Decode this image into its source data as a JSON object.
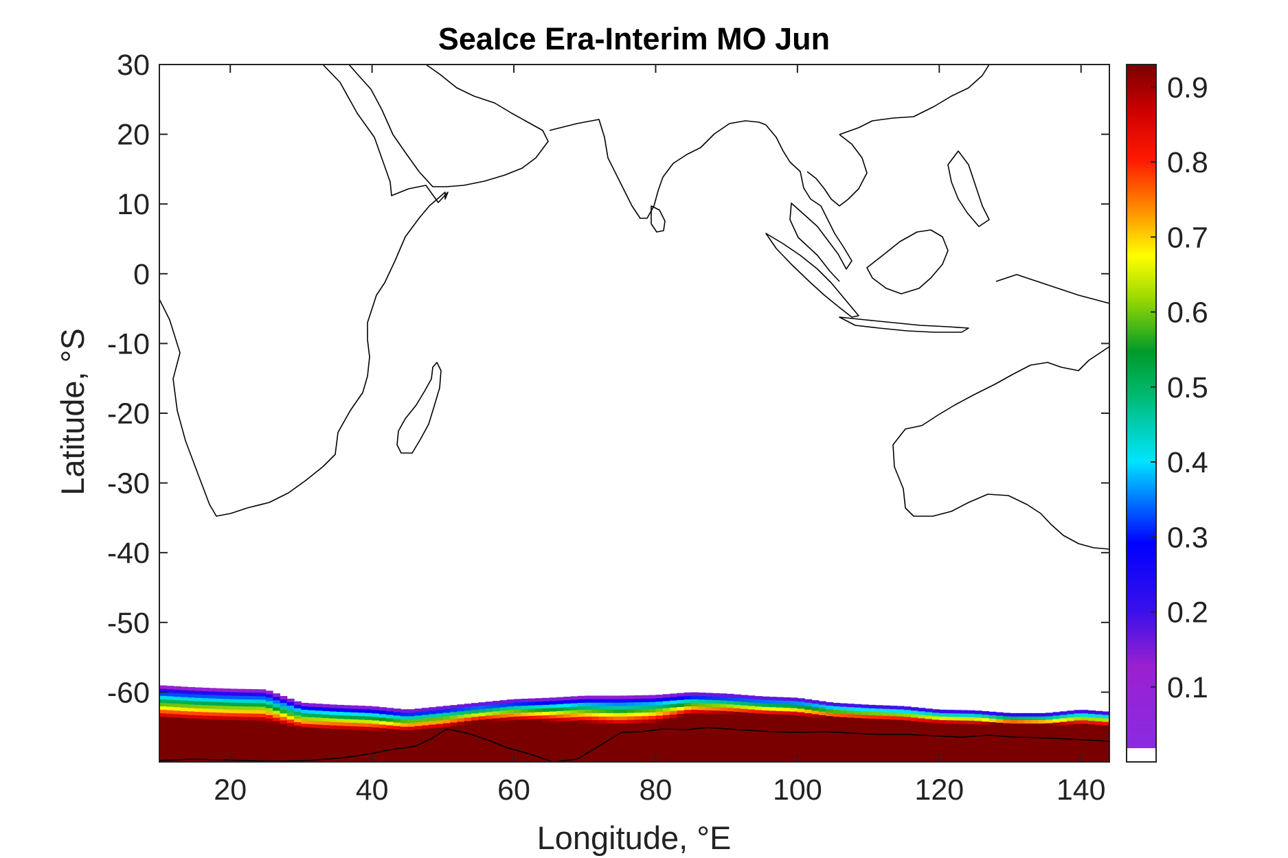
{
  "chart_data": {
    "type": "heatmap",
    "title": "SeaIce Era-Interim MO Jun",
    "xlabel": "Longitude, °E",
    "ylabel": "Latitude, °S",
    "xlim": [
      10,
      144
    ],
    "ylim": [
      -70,
      30
    ],
    "xticks": [
      20,
      40,
      60,
      80,
      100,
      120,
      140
    ],
    "yticks": [
      30,
      20,
      10,
      0,
      -10,
      -20,
      -30,
      -40,
      -50,
      -60
    ],
    "colorbar": {
      "range": [
        0,
        0.93
      ],
      "ticks": [
        0.1,
        0.2,
        0.3,
        0.4,
        0.5,
        0.6,
        0.7,
        0.8,
        0.9
      ],
      "colormap": "jet-like (violet-blue-cyan-green-yellow-red-darkred)"
    },
    "field": "sea ice concentration",
    "ice_edge_profile": {
      "lon": [
        10,
        15,
        20,
        25,
        30,
        35,
        40,
        45,
        50,
        55,
        60,
        65,
        70,
        75,
        80,
        85,
        90,
        95,
        100,
        105,
        110,
        115,
        120,
        125,
        130,
        135,
        140,
        144
      ],
      "outer_edge_lat": [
        -59,
        -59.3,
        -59.5,
        -59.6,
        -61.5,
        -61.8,
        -62,
        -62.5,
        -62,
        -61.5,
        -61,
        -60.8,
        -60.5,
        -60.5,
        -60.4,
        -60,
        -60.2,
        -60.6,
        -60.8,
        -61.5,
        -61.8,
        -62,
        -62.5,
        -62.6,
        -63,
        -63,
        -62.5,
        -62.8
      ],
      "coast_lat": [
        -69.5,
        -69.6,
        -69.6,
        -69.6,
        -69.7,
        -69.6,
        -69.7,
        -69.2,
        -68.7,
        -67.4,
        -67.6,
        -68.2,
        -69.0,
        -69.8,
        -69.0,
        -66.8,
        -66.5,
        -66.4,
        -66.3,
        -66.4,
        -66.5,
        -66.6,
        -66.7,
        -66.9,
        -66.5,
        -66.8,
        -67.0,
        -67.2
      ]
    }
  }
}
